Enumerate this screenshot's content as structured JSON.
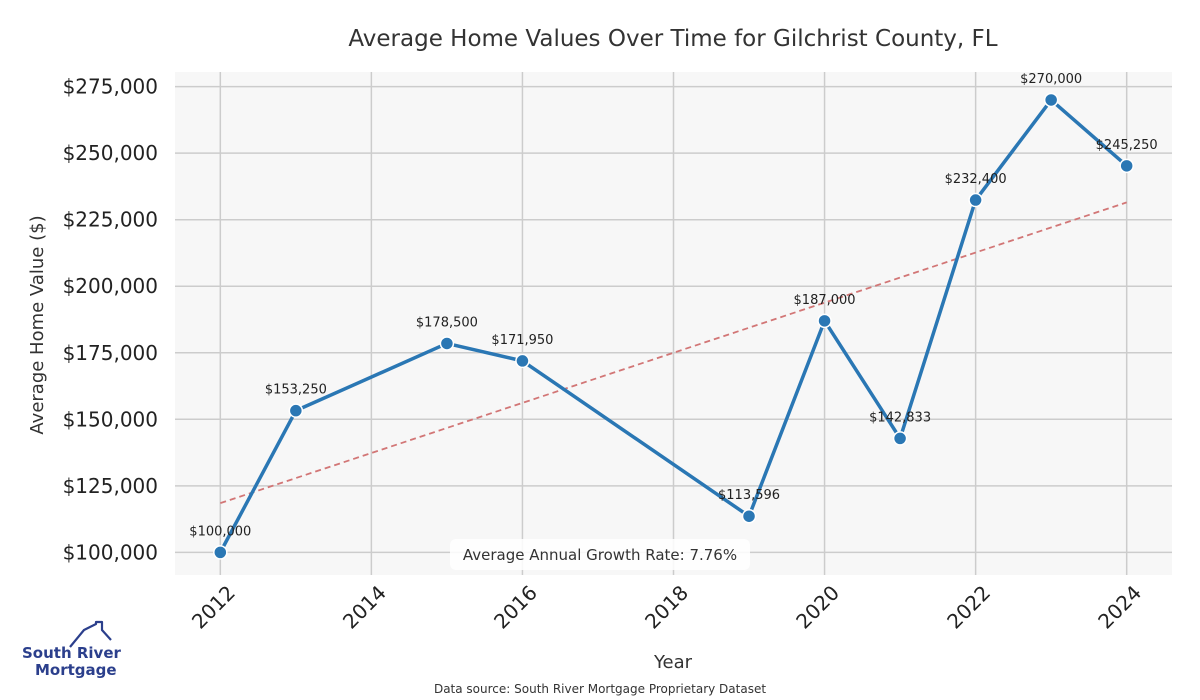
{
  "chart_data": {
    "type": "line",
    "title": "Average Home Values Over Time for Gilchrist County, FL",
    "xlabel": "Year",
    "ylabel": "Average Home Value ($)",
    "x": [
      2012,
      2013,
      2015,
      2016,
      2019,
      2020,
      2021,
      2022,
      2023,
      2024
    ],
    "series": [
      {
        "values": [
          100000,
          153250,
          178500,
          171950,
          113596,
          187000,
          142833,
          232400,
          270000,
          245250
        ],
        "labels": [
          "$100,000",
          "$153,250",
          "$178,500",
          "$171,950",
          "$113,596",
          "$187,000",
          "$142,833",
          "$232,400",
          "$270,000",
          "$245,250"
        ],
        "color": "#2a77b4"
      }
    ],
    "trendline": {
      "start": [
        2012,
        118500
      ],
      "end": [
        2024,
        231500
      ],
      "color": "#d27676",
      "style": "dashed"
    },
    "xlim": [
      2011.4,
      2024.6
    ],
    "ylim": [
      91500,
      280500
    ],
    "xticks": [
      2012,
      2014,
      2016,
      2018,
      2020,
      2022,
      2024
    ],
    "xtick_labels": [
      "2012",
      "2014",
      "2016",
      "2018",
      "2020",
      "2022",
      "2024"
    ],
    "yticks": [
      100000,
      125000,
      150000,
      175000,
      200000,
      225000,
      250000,
      275000
    ],
    "ytick_labels": [
      "$100,000",
      "$125,000",
      "$150,000",
      "$175,000",
      "$200,000",
      "$225,000",
      "$250,000",
      "$275,000"
    ],
    "grid": true,
    "background": "#f7f7f7",
    "gridColor": "#cccccc",
    "annotation": "Average Annual Growth Rate: 7.76%",
    "source": "Data source: South River Mortgage Proprietary Dataset"
  },
  "logo": {
    "line1": "South River",
    "line2": "Mortgage",
    "color": "#2b3f8c"
  }
}
